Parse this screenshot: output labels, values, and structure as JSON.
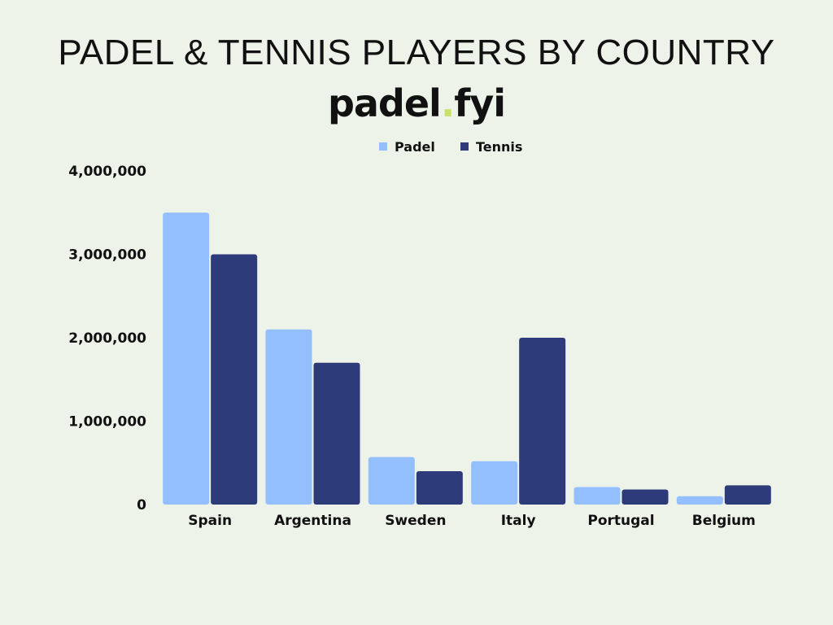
{
  "title": "PADEL & TENNIS PLAYERS BY COUNTRY",
  "logo": {
    "text_before_dot": "padel",
    "dot": ".",
    "text_after_dot": "fyi",
    "dot_color": "#c9e265"
  },
  "colors": {
    "background": "#eef3ea",
    "padel": "#94bfff",
    "tennis": "#2e3b7a"
  },
  "chart_data": {
    "type": "bar",
    "title": "PADEL & TENNIS PLAYERS BY COUNTRY",
    "categories": [
      "Spain",
      "Argentina",
      "Sweden",
      "Italy",
      "Portugal",
      "Belgium"
    ],
    "series": [
      {
        "name": "Padel",
        "values": [
          3500000,
          2100000,
          570000,
          520000,
          210000,
          100000
        ]
      },
      {
        "name": "Tennis",
        "values": [
          3000000,
          1700000,
          400000,
          2000000,
          180000,
          230000
        ]
      }
    ],
    "yticks": [
      {
        "value": 0,
        "label": "0"
      },
      {
        "value": 1000000,
        "label": "1,000,000"
      },
      {
        "value": 2000000,
        "label": "2,000,000"
      },
      {
        "value": 3000000,
        "label": "3,000,000"
      },
      {
        "value": 4000000,
        "label": "4,000,000"
      }
    ],
    "ylim": [
      0,
      4000000
    ],
    "xlabel": "",
    "ylabel": "",
    "grid": false,
    "legend_position": "top-center"
  }
}
